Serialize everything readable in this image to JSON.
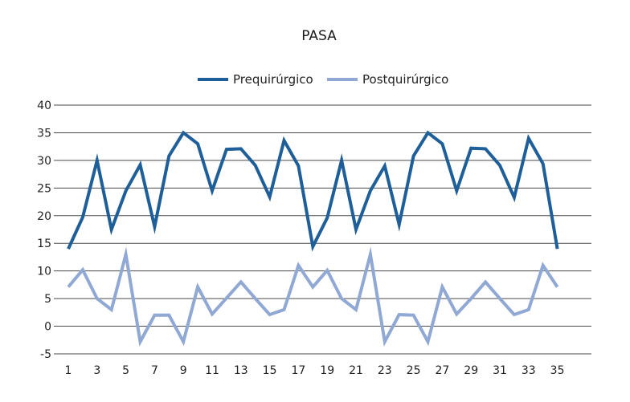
{
  "chart_data": {
    "type": "line",
    "title": "PASA",
    "xlabel": "",
    "ylabel": "",
    "ylim": [
      -5,
      40
    ],
    "yticks": [
      -5,
      0,
      5,
      10,
      15,
      20,
      25,
      30,
      35,
      40
    ],
    "xticks": [
      1,
      3,
      5,
      7,
      9,
      11,
      13,
      15,
      17,
      19,
      21,
      23,
      25,
      27,
      29,
      31,
      33,
      35
    ],
    "x": [
      1,
      2,
      3,
      4,
      5,
      6,
      7,
      8,
      9,
      10,
      11,
      12,
      13,
      14,
      15,
      16,
      17,
      18,
      19,
      20,
      21,
      22,
      23,
      24,
      25,
      26,
      27,
      28,
      29,
      30,
      31,
      32,
      33,
      34,
      35
    ],
    "grid": "horizontal",
    "legend": "top-center",
    "series": [
      {
        "name": "Prequirúrgico",
        "color": "#1f5f99",
        "values": [
          14,
          19.7,
          30,
          17.5,
          24.5,
          29.2,
          18,
          30.8,
          35,
          33,
          24.5,
          32,
          32.1,
          29.1,
          23.4,
          33.6,
          29,
          14.4,
          19.6,
          30,
          17.5,
          24.5,
          29,
          18.4,
          30.8,
          35,
          33,
          24.5,
          32.2,
          32.1,
          29.1,
          23.3,
          34,
          29.4,
          14
        ]
      },
      {
        "name": "Postquirúrgico",
        "color": "#90a8d4",
        "values": [
          7.1,
          10.2,
          5,
          3,
          13,
          -2.8,
          2,
          2,
          -2.8,
          7.1,
          2.2,
          5.1,
          8,
          5,
          2.1,
          3,
          11,
          7.1,
          10.1,
          5,
          3,
          13,
          -2.8,
          2.1,
          2,
          -2.8,
          7.1,
          2.2,
          5,
          8,
          5,
          2.1,
          3,
          11,
          7.1
        ]
      }
    ]
  }
}
